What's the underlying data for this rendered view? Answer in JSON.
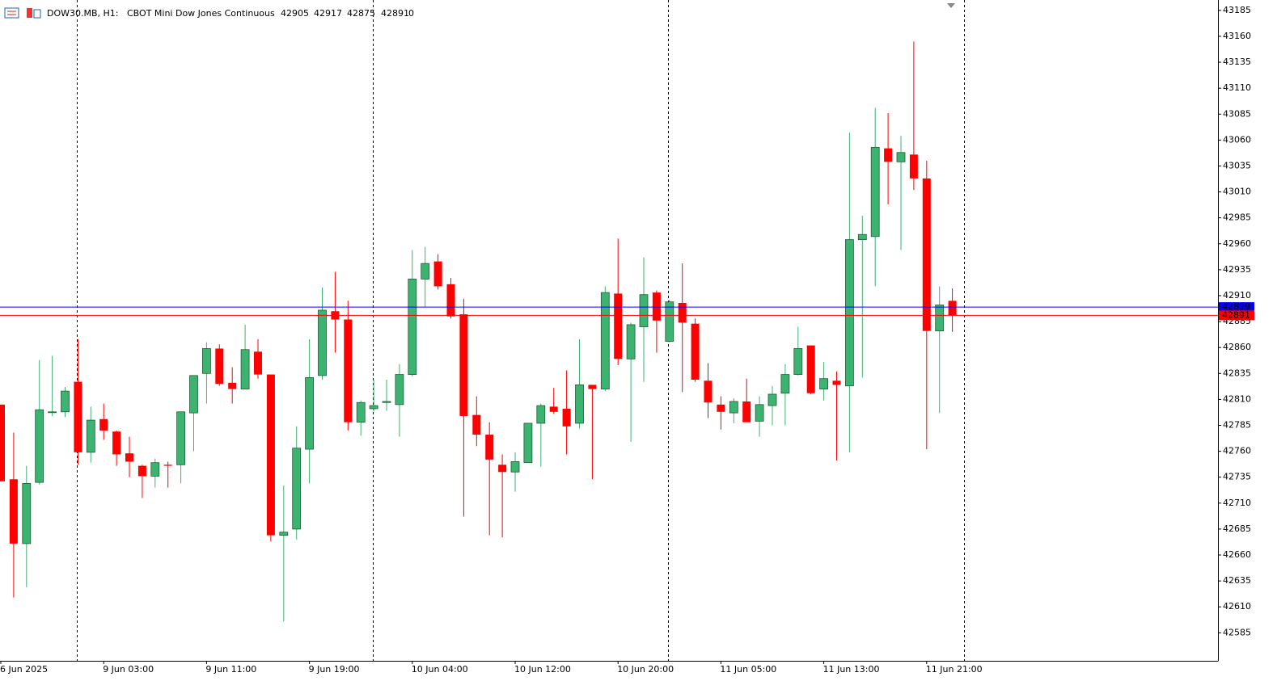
{
  "chart_data": {
    "type": "candlestick",
    "symbol": "DOW30.MB, H1:",
    "description": "CBOT Mini Dow Jones Continuous",
    "ohlc": [
      42905,
      42917,
      42875,
      42891
    ],
    "volume": 0,
    "categories": [
      "6 Jun 2025",
      null,
      null,
      null,
      null,
      null,
      null,
      null,
      "9 Jun 03:00",
      null,
      null,
      null,
      null,
      null,
      null,
      null,
      "9 Jun 11:00",
      null,
      null,
      null,
      null,
      null,
      null,
      null,
      "9 Jun 19:00",
      null,
      null,
      null,
      null,
      null,
      null,
      null,
      "10 Jun 04:00",
      null,
      null,
      null,
      null,
      null,
      null,
      null,
      "10 Jun 12:00",
      null,
      null,
      null,
      null,
      null,
      null,
      null,
      "10 Jun 20:00",
      null,
      null,
      null,
      null,
      null,
      null,
      null,
      "11 Jun 05:00",
      null,
      null,
      null,
      null,
      null,
      null,
      null,
      "11 Jun 13:00",
      null,
      null,
      null,
      null,
      null,
      null,
      null,
      "11 Jun 21:00",
      null,
      null
    ],
    "open": [
      42805,
      42733,
      42671,
      42730,
      42798,
      42798,
      42827,
      42759,
      42791,
      42779,
      42758,
      42746,
      42736,
      42747,
      42747,
      42797,
      42835,
      42859,
      42826,
      42820,
      42856,
      42834,
      42679,
      42685,
      42762,
      42833,
      42895,
      42887,
      42788,
      42801,
      42807,
      42805,
      42834,
      42926,
      42943,
      42921,
      42892,
      42795,
      42776,
      42747,
      42740,
      42749,
      42787,
      42803,
      42801,
      42787,
      42824,
      42820,
      42912,
      42849,
      42880,
      42913,
      42866,
      42903,
      42883,
      42828,
      42805,
      42797,
      42808,
      42789,
      42804,
      42816,
      42834,
      42862,
      42820,
      42828,
      42823,
      42964,
      42967,
      43052,
      43039,
      43046,
      43023,
      42876,
      42905
    ],
    "high": [
      42805,
      42778,
      42746,
      42848,
      42852,
      42822,
      42868,
      42803,
      42806,
      42780,
      42774,
      42747,
      42753,
      42750,
      42798,
      42833,
      42865,
      42863,
      42841,
      42882,
      42868,
      42834,
      42727,
      42784,
      42868,
      42918,
      42933,
      42905,
      42809,
      42829,
      42829,
      42844,
      42954,
      42957,
      42950,
      42927,
      42907,
      42813,
      42788,
      42757,
      42759,
      42787,
      42806,
      42821,
      42838,
      42868,
      42824,
      42919,
      42965,
      42884,
      42947,
      42915,
      42906,
      42941,
      42888,
      42845,
      42813,
      42811,
      42830,
      42813,
      42823,
      42844,
      42880,
      42862,
      42846,
      42837,
      43067,
      42987,
      43091,
      43086,
      43064,
      43155,
      43040,
      42919,
      42917
    ],
    "low": [
      42731,
      42619,
      42629,
      42728,
      42794,
      42793,
      42747,
      42749,
      42771,
      42746,
      42735,
      42715,
      42725,
      42725,
      42729,
      42760,
      42806,
      42823,
      42806,
      42820,
      42830,
      42673,
      42596,
      42675,
      42729,
      42829,
      42855,
      42780,
      42775,
      42798,
      42799,
      42774,
      42832,
      42899,
      42916,
      42888,
      42697,
      42765,
      42679,
      42677,
      42721,
      42749,
      42745,
      42796,
      42757,
      42782,
      42733,
      42818,
      42843,
      42769,
      42827,
      42855,
      42865,
      42817,
      42827,
      42792,
      42781,
      42787,
      42788,
      42774,
      42785,
      42785,
      42833,
      42815,
      42809,
      42751,
      42759,
      42831,
      42919,
      42998,
      42954,
      43012,
      42762,
      42797,
      42875
    ],
    "close": [
      42731,
      42671,
      42729,
      42800,
      42798,
      42818,
      42759,
      42790,
      42780,
      42757,
      42750,
      42736,
      42749,
      42746,
      42798,
      42833,
      42859,
      42825,
      42820,
      42858,
      42834,
      42679,
      42682,
      42763,
      42831,
      42896,
      42887,
      42788,
      42807,
      42804,
      42808,
      42834,
      42926,
      42941,
      42919,
      42890,
      42794,
      42776,
      42752,
      42740,
      42750,
      42787,
      42804,
      42798,
      42784,
      42824,
      42820,
      42913,
      42849,
      42882,
      42911,
      42886,
      42904,
      42884,
      42829,
      42807,
      42798,
      42808,
      42788,
      42805,
      42815,
      42834,
      42859,
      42816,
      42830,
      42824,
      42964,
      42969,
      43053,
      43039,
      43048,
      43023,
      42876,
      42901,
      42891
    ],
    "up_color": "#3cb371",
    "down_color": "#ff0000",
    "ylim": [
      42558,
      43195
    ],
    "yticks": [
      42585,
      42610,
      42635,
      42660,
      42685,
      42710,
      42735,
      42760,
      42785,
      42810,
      42835,
      42860,
      42885,
      42910,
      42935,
      42960,
      42985,
      43010,
      43035,
      43060,
      43085,
      43110,
      43135,
      43160,
      43185
    ],
    "price_lines": [
      {
        "value": 42899,
        "color": "#0000ff"
      },
      {
        "value": 42891,
        "color": "#ff0000"
      }
    ]
  }
}
